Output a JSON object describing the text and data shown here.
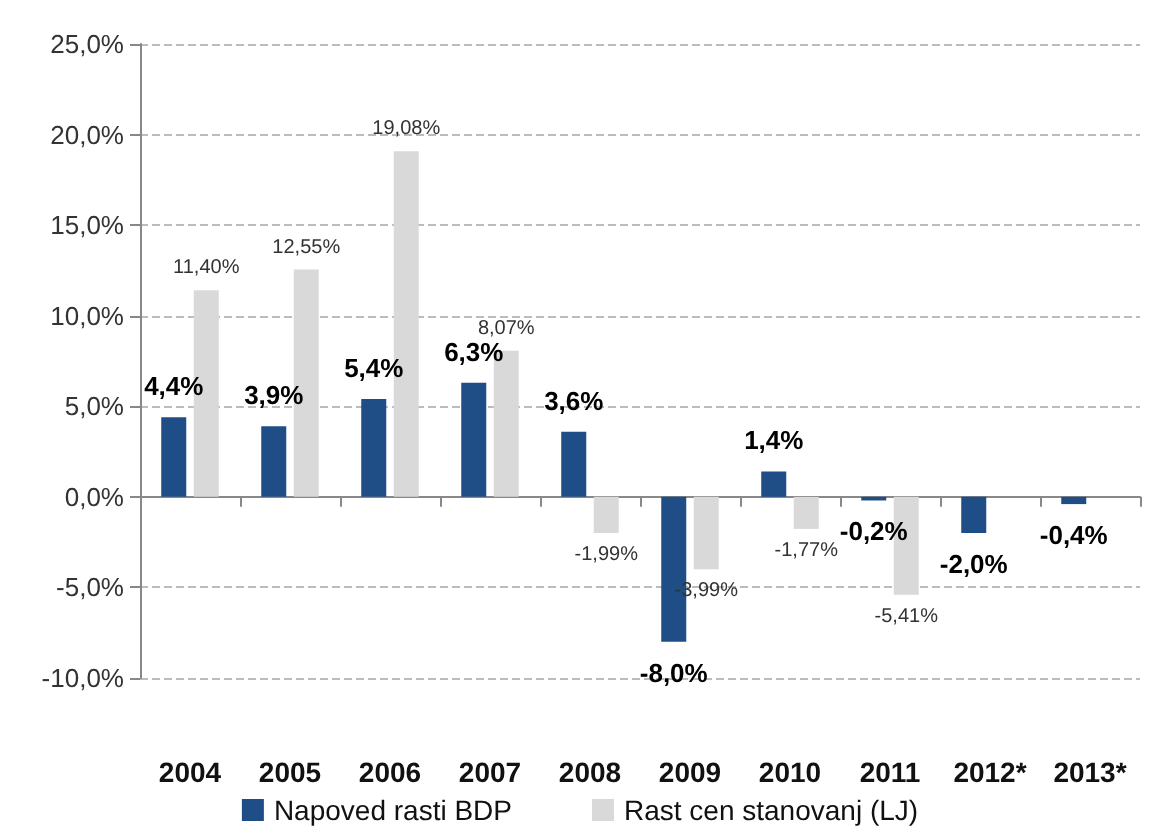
{
  "chart_data": {
    "type": "bar",
    "categories": [
      "2004",
      "2005",
      "2006",
      "2007",
      "2008",
      "2009",
      "2010",
      "2011",
      "2012*",
      "2013*"
    ],
    "series": [
      {
        "name": "Napoved rasti BDP",
        "color": "#1f4e87",
        "values": [
          4.4,
          3.9,
          5.4,
          6.3,
          3.6,
          -8.0,
          1.4,
          -0.2,
          -2.0,
          -0.4
        ],
        "value_labels": [
          "4,4%",
          "3,9%",
          "5,4%",
          "6,3%",
          "3,6%",
          "-8,0%",
          "1,4%",
          "-0,2%",
          "-2,0%",
          "-0,4%"
        ]
      },
      {
        "name": "Rast cen stanovanj (LJ)",
        "color": "#d9d9d9",
        "values": [
          11.4,
          12.55,
          19.08,
          8.07,
          -1.99,
          -3.99,
          -1.77,
          -5.41,
          null,
          null
        ],
        "value_labels": [
          "11,40%",
          "12,55%",
          "19,08%",
          "8,07%",
          "-1,99%",
          "-3,99%",
          "-1,77%",
          "-5,41%",
          null,
          null
        ]
      }
    ],
    "ylim": [
      -10,
      25
    ],
    "yticks": [
      {
        "value": -10,
        "label": "-10,0%"
      },
      {
        "value": -5,
        "label": "-5,0%"
      },
      {
        "value": 0,
        "label": "0,0%"
      },
      {
        "value": 5,
        "label": "5,0%"
      },
      {
        "value": 10,
        "label": "10,0%"
      },
      {
        "value": 15,
        "label": "15,0%"
      },
      {
        "value": 20,
        "label": "20,0%"
      },
      {
        "value": 25,
        "label": "25,0%"
      }
    ],
    "grid": "y",
    "legend": "bottom"
  }
}
